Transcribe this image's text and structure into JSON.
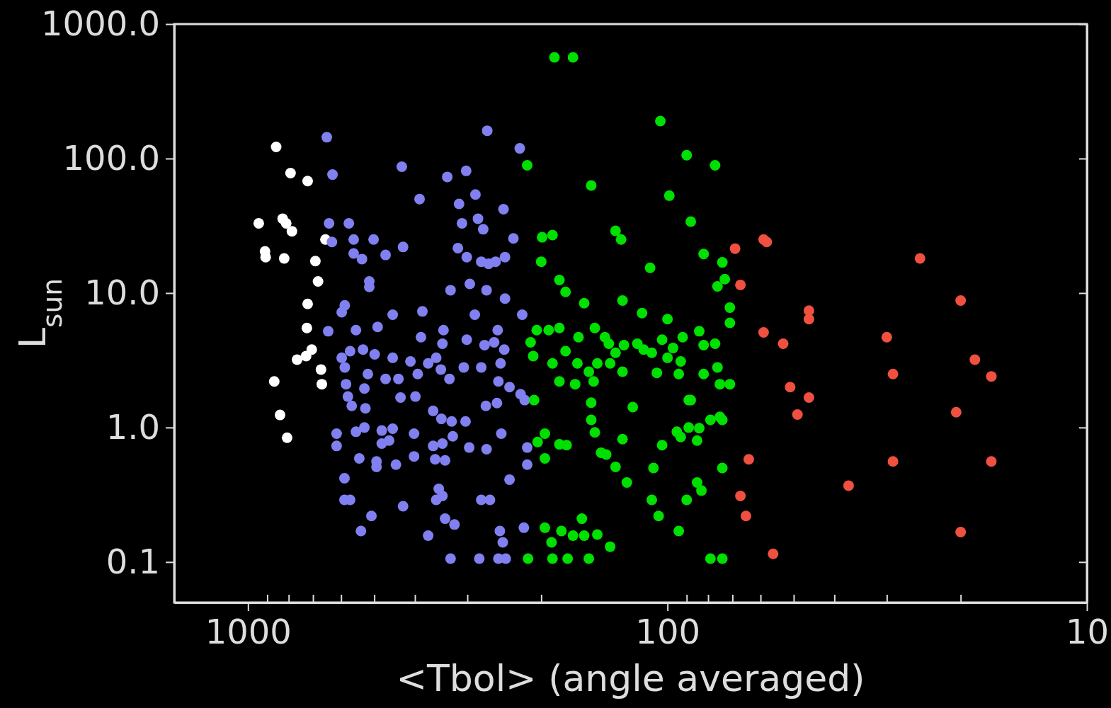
{
  "chart_data": {
    "type": "scatter",
    "xlabel": "<Tbol> (angle averaged)",
    "ylabel": "L$_{sun}$",
    "log": "xy",
    "marker": "circle",
    "grid": false,
    "xlim": [
      1500,
      10
    ],
    "ylim": [
      0.05,
      1000
    ],
    "xticks": [
      {
        "value": 1000,
        "label": "1000"
      },
      {
        "value": 900,
        "label": null
      },
      {
        "value": 800,
        "label": null
      },
      {
        "value": 700,
        "label": null
      },
      {
        "value": 600,
        "label": null
      },
      {
        "value": 500,
        "label": null
      },
      {
        "value": 400,
        "label": null
      },
      {
        "value": 300,
        "label": null
      },
      {
        "value": 200,
        "label": null
      },
      {
        "value": 100,
        "label": "100"
      },
      {
        "value": 90,
        "label": null
      },
      {
        "value": 80,
        "label": null
      },
      {
        "value": 70,
        "label": null
      },
      {
        "value": 60,
        "label": null
      },
      {
        "value": 50,
        "label": null
      },
      {
        "value": 40,
        "label": null
      },
      {
        "value": 30,
        "label": null
      },
      {
        "value": 20,
        "label": null
      },
      {
        "value": 10,
        "label": "10"
      }
    ],
    "yticks": [
      {
        "value": 0.1,
        "label": "0.1"
      },
      {
        "value": 1,
        "label": "1.0"
      },
      {
        "value": 10,
        "label": "10.0"
      },
      {
        "value": 100,
        "label": "100.0"
      },
      {
        "value": 1000,
        "label": "1000.0"
      }
    ],
    "series": [
      {
        "color": "#ffffff",
        "x": [
          943,
          857,
          792,
          721,
          911,
          908,
          827,
          811,
          786,
          820,
          691,
          681,
          721,
          724,
          705,
          727,
          764,
          670,
          667,
          866,
          839,
          807,
          654
        ],
        "values": [
          33,
          122,
          78,
          68,
          20.4,
          18.5,
          35.7,
          33,
          28.8,
          18.1,
          17.3,
          12.2,
          8.3,
          5.5,
          3.8,
          3.4,
          3.2,
          2.7,
          2.1,
          2.2,
          1.24,
          0.84,
          25
        ]
      },
      {
        "color": "#8080f0",
        "x": [
          649,
          629,
          430,
          390,
          335,
          302,
          269,
          225,
          314,
          287,
          246,
          233,
          309,
          283,
          641,
          575,
          631,
          560,
          502,
          427,
          470,
          560,
          535,
          514,
          514,
          316,
          301,
          278,
          267,
          257,
          244,
          275,
          588,
          598,
          452,
          384,
          329,
          296,
          270,
          244,
          222,
          288,
          644,
          553,
          491,
          387,
          342,
          344,
          301,
          273,
          254,
          259,
          245,
          598,
          571,
          532,
          499,
          452,
          410,
          372,
          356,
          347,
          331,
          306,
          278,
          250,
          588,
          518,
          470,
          438,
          394,
          253,
          238,
          224,
          219,
          584,
          578,
          528,
          433,
          399,
          566,
          525,
          362,
          346,
          327,
          303,
          271,
          255,
          615,
          615,
          553,
          528,
          480,
          452,
          461,
          480,
          402,
          362,
          344,
          325,
          297,
          270,
          249,
          216,
          216,
          238,
          543,
          494,
          444,
          494,
          402,
          358,
          339,
          589,
          589,
          571,
          427,
          351,
          344,
          356,
          278,
          265,
          508,
          538,
          372,
          339,
          322,
          251,
          247,
          220,
          329,
          281,
          253,
          243
        ],
        "values": [
          144,
          76,
          87,
          50,
          73,
          81,
          161,
          119,
          46,
          54,
          42,
          25.5,
          33,
          35.7,
          33,
          33,
          24,
          25,
          25,
          22,
          19.2,
          19.7,
          17.9,
          12.2,
          11.1,
          21.6,
          18.5,
          17.1,
          16.5,
          17.1,
          18.5,
          29.8,
          8.1,
          7.2,
          6.9,
          7.3,
          10.5,
          11.7,
          10.5,
          9.1,
          6.9,
          6.9,
          5.2,
          5.3,
          5.6,
          4.7,
          5.3,
          4.2,
          4.5,
          4.1,
          5.3,
          4.3,
          3.8,
          3.3,
          3.7,
          3.8,
          3.5,
          3.3,
          3.1,
          3.0,
          3.3,
          2.7,
          2.3,
          2.8,
          2.8,
          3.0,
          2.8,
          2.5,
          2.3,
          2.3,
          2.5,
          2.2,
          2.0,
          1.77,
          1.6,
          2.1,
          1.7,
          1.95,
          1.67,
          1.7,
          1.45,
          1.39,
          1.33,
          1.16,
          1.11,
          1.11,
          1.45,
          1.52,
          0.9,
          0.73,
          0.93,
          1.0,
          0.95,
          0.98,
          0.8,
          0.76,
          0.9,
          0.73,
          0.76,
          0.86,
          0.71,
          0.69,
          0.9,
          0.71,
          0.53,
          0.41,
          0.59,
          0.56,
          0.53,
          0.51,
          0.61,
          0.58,
          0.57,
          0.42,
          0.29,
          0.29,
          0.26,
          0.35,
          0.31,
          0.29,
          0.29,
          0.29,
          0.22,
          0.17,
          0.157,
          0.21,
          0.19,
          0.17,
          0.14,
          0.18,
          0.106,
          0.106,
          0.106,
          0.106
        ]
      },
      {
        "color": "#00e000",
        "x": [
          186,
          168,
          104,
          216,
          152,
          90,
          77,
          99,
          88,
          199,
          188,
          133,
          129,
          200,
          82,
          74,
          110,
          181,
          175,
          158,
          128,
          115,
          100,
          76,
          73,
          71,
          71,
          205,
          192,
          181,
          212,
          209,
          188,
          175,
          163,
          149,
          141,
          138,
          133,
          127,
          164,
          147,
          154,
          137,
          128,
          181,
          166,
          150,
          118,
          114,
          109,
          103,
          92,
          97,
          100,
          93,
          106,
          94,
          84,
          82,
          82,
          77,
          76,
          75,
          71,
          89,
          88,
          152,
          121,
          152,
          149,
          128,
          204,
          196,
          196,
          181,
          174,
          144,
          140,
          133,
          125,
          108,
          103,
          95,
          93,
          89,
          84,
          85,
          79,
          75,
          74,
          74,
          85,
          83,
          90,
          109,
          105,
          94,
          196,
          189,
          179,
          168,
          160,
          158,
          147,
          137,
          215,
          188,
          173,
          154,
          79,
          74,
          208
        ],
        "values": [
          566,
          566,
          190,
          89,
          63,
          106,
          89,
          53,
          34,
          26,
          27,
          29,
          25,
          17.1,
          19.5,
          16.9,
          15.4,
          12.5,
          10.2,
          8.4,
          8.8,
          7.1,
          6.4,
          11.2,
          12.7,
          7.8,
          6.0,
          5.3,
          5.3,
          5.5,
          4.3,
          3.4,
          3.0,
          3.7,
          4.7,
          5.5,
          4.7,
          4.2,
          3.6,
          4.1,
          3.0,
          3.0,
          2.6,
          3.0,
          2.6,
          2.2,
          2.1,
          2.2,
          4.2,
          3.8,
          3.6,
          4.5,
          4.7,
          3.9,
          3.3,
          3.1,
          2.55,
          2.5,
          5.2,
          4.1,
          2.5,
          4.2,
          2.8,
          2.1,
          2.1,
          1.6,
          1.6,
          1.53,
          1.42,
          1.14,
          0.92,
          0.82,
          0.78,
          0.9,
          0.59,
          0.75,
          0.74,
          0.65,
          0.63,
          0.51,
          0.39,
          0.5,
          0.74,
          0.93,
          0.85,
          1.0,
          0.99,
          0.8,
          1.14,
          1.2,
          1.14,
          0.5,
          0.39,
          0.34,
          0.29,
          0.29,
          0.22,
          0.17,
          0.18,
          0.14,
          0.17,
          0.157,
          0.21,
          0.157,
          0.16,
          0.13,
          0.106,
          0.106,
          0.106,
          0.106,
          0.106,
          0.106,
          1.6
        ]
      },
      {
        "color": "#f05040",
        "x": [
          69,
          59,
          58,
          67,
          46,
          46,
          59,
          53,
          25,
          20,
          30,
          18.5,
          16.9,
          29,
          51,
          46,
          49,
          20.5,
          64,
          29,
          16.9,
          37,
          67,
          65,
          20,
          56
        ],
        "values": [
          21.4,
          25,
          24,
          11.5,
          7.4,
          6.4,
          5.1,
          4.2,
          18.1,
          8.8,
          4.7,
          3.2,
          2.4,
          2.5,
          2.0,
          1.67,
          1.25,
          1.3,
          0.58,
          0.56,
          0.56,
          0.37,
          0.31,
          0.22,
          0.167,
          0.115
        ]
      }
    ]
  }
}
